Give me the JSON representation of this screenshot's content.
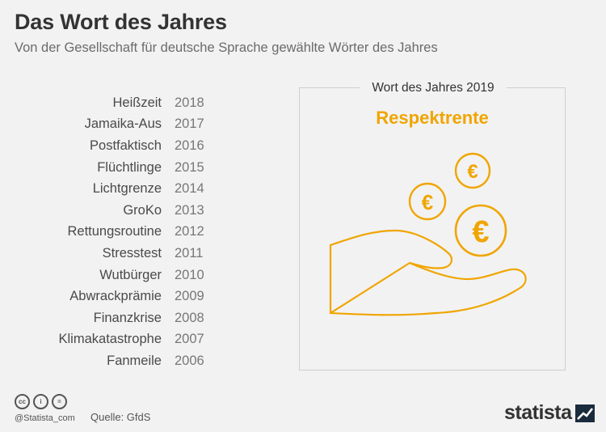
{
  "header": {
    "title": "Das Wort des Jahres",
    "subtitle": "Von der Gesellschaft für deutsche Sprache gewählte Wörter des Jahres"
  },
  "words": [
    {
      "word": "Heißzeit",
      "year": "2018"
    },
    {
      "word": "Jamaika-Aus",
      "year": "2017"
    },
    {
      "word": "Postfaktisch",
      "year": "2016"
    },
    {
      "word": "Flüchtlinge",
      "year": "2015"
    },
    {
      "word": "Lichtgrenze",
      "year": "2014"
    },
    {
      "word": "GroKo",
      "year": "2013"
    },
    {
      "word": "Rettungsroutine",
      "year": "2012"
    },
    {
      "word": "Stresstest",
      "year": "2011"
    },
    {
      "word": "Wutbürger",
      "year": "2010"
    },
    {
      "word": "Abwrackprämie",
      "year": "2009"
    },
    {
      "word": "Finanzkrise",
      "year": "2008"
    },
    {
      "word": "Klimakatastrophe",
      "year": "2007"
    },
    {
      "word": "Fanmeile",
      "year": "2006"
    }
  ],
  "highlight": {
    "label": "Wort des Jahres 2019",
    "word": "Respektrente",
    "coin_symbol": "€",
    "accent_color": "#f0a500",
    "icon": "hand-with-euro-coins-icon"
  },
  "footer": {
    "license_icons": [
      "cc",
      "i",
      "="
    ],
    "handle": "@Statista_com",
    "source": "Quelle: GfdS",
    "brand": "statista"
  }
}
